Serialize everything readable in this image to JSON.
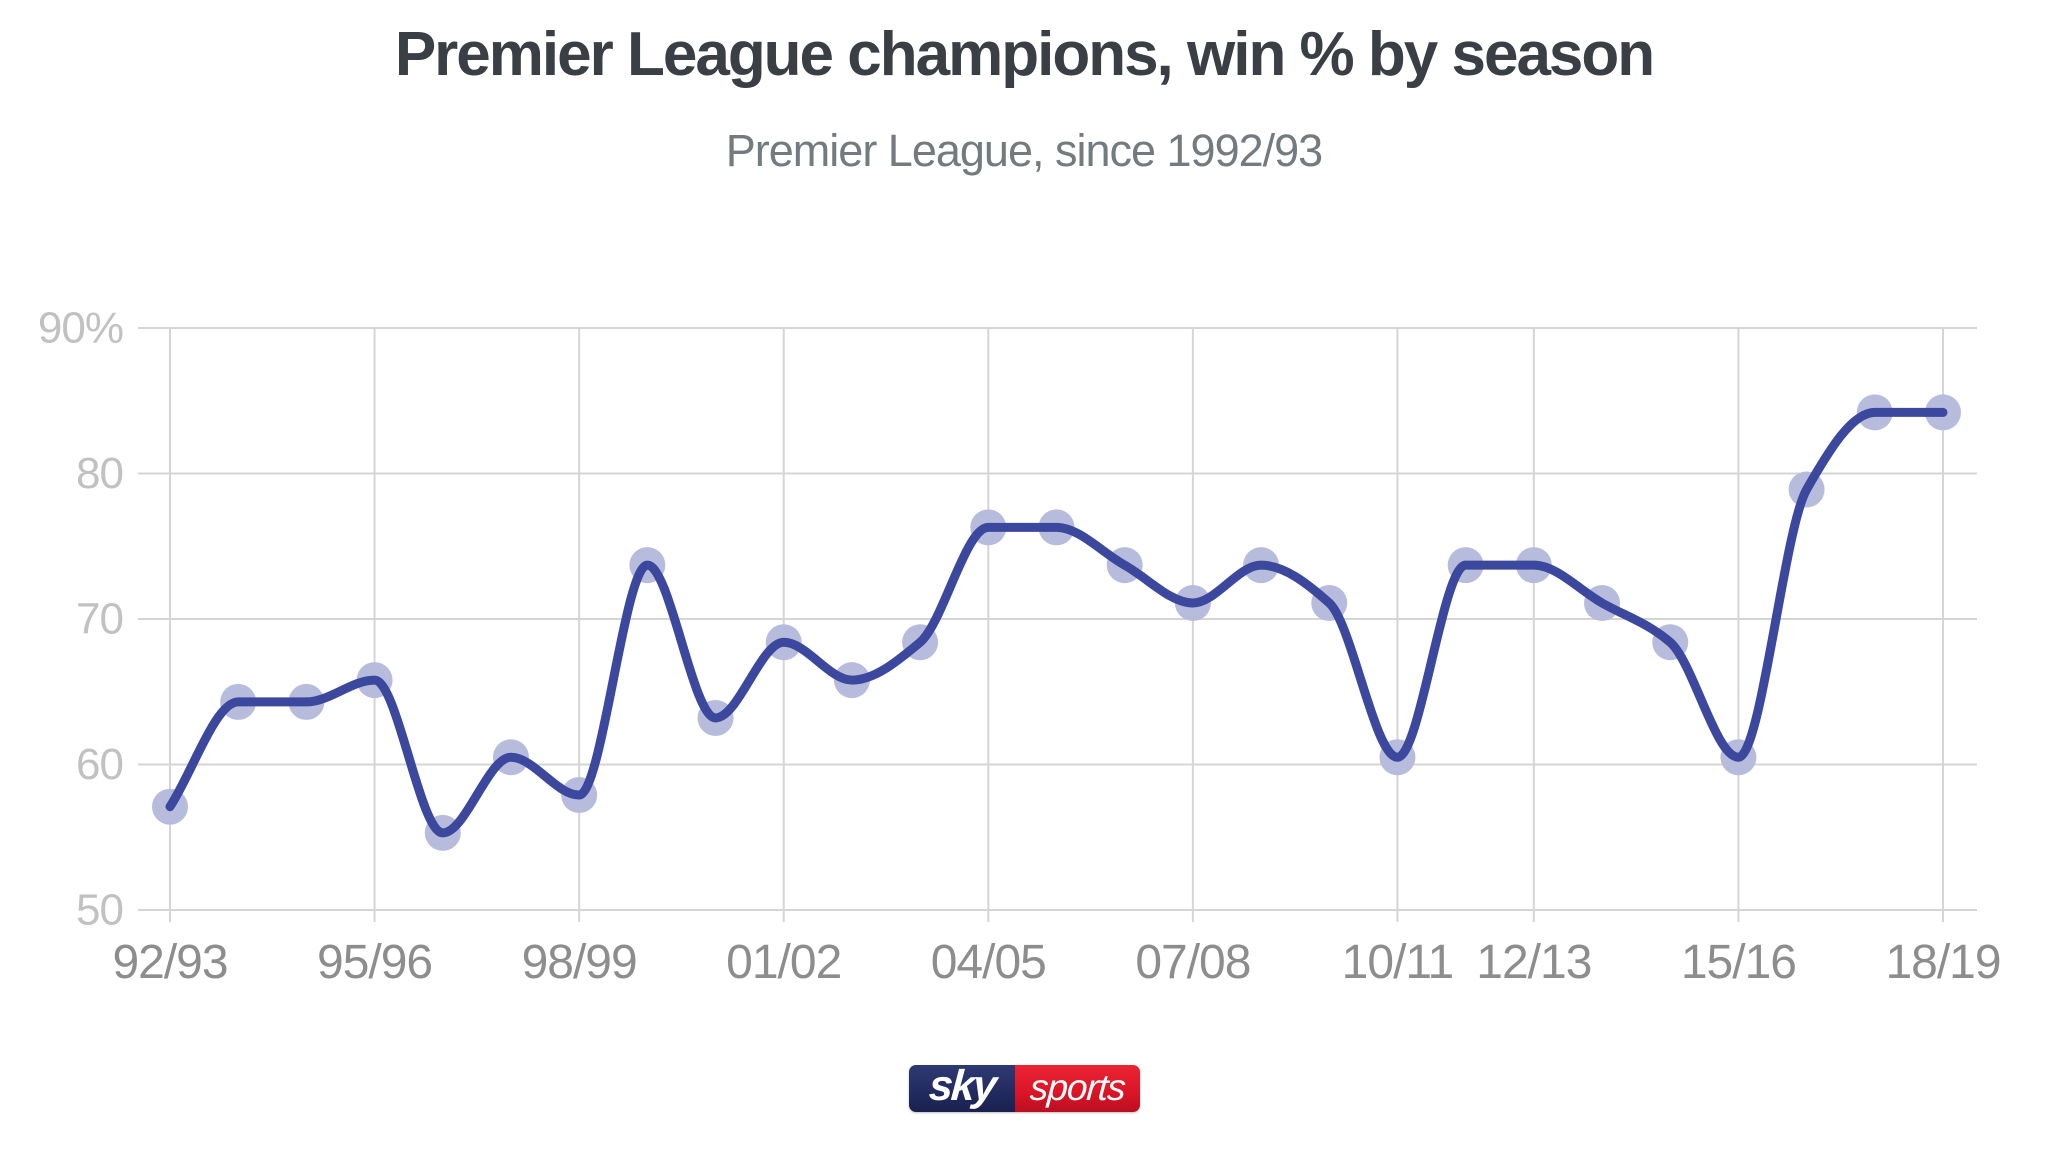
{
  "chart_data": {
    "type": "line",
    "title": "Premier League champions, win % by season",
    "subtitle": "Premier League, since 1992/93",
    "x": [
      "92/93",
      "93/94",
      "94/95",
      "95/96",
      "96/97",
      "97/98",
      "98/99",
      "99/00",
      "00/01",
      "01/02",
      "02/03",
      "03/04",
      "04/05",
      "05/06",
      "06/07",
      "07/08",
      "08/09",
      "09/10",
      "10/11",
      "11/12",
      "12/13",
      "13/14",
      "14/15",
      "15/16",
      "16/17",
      "17/18",
      "18/19"
    ],
    "values": [
      57.1,
      64.3,
      64.3,
      65.8,
      55.3,
      60.5,
      57.9,
      73.7,
      63.2,
      68.4,
      65.8,
      68.4,
      76.3,
      76.3,
      73.7,
      71.1,
      73.7,
      71.1,
      60.5,
      73.7,
      73.7,
      71.1,
      68.4,
      60.5,
      78.9,
      84.2,
      84.2
    ],
    "x_tick_labels": [
      "92/93",
      "95/96",
      "98/99",
      "01/02",
      "04/05",
      "07/08",
      "10/11",
      "12/13",
      "15/16",
      "18/19"
    ],
    "x_tick_indices": [
      0,
      3,
      6,
      9,
      12,
      15,
      18,
      20,
      23,
      26
    ],
    "y_ticks": [
      90,
      80,
      70,
      60,
      50
    ],
    "y_tick_labels": [
      "90%",
      "80",
      "70",
      "60",
      "50"
    ],
    "ylim": [
      50,
      90
    ],
    "grid": true,
    "legend_position": "none",
    "colors": {
      "line": "#3c489d",
      "marker": "#b7bcdc",
      "grid": "#d5d5d5",
      "x_tick_label": "#8d8d8d",
      "y_tick_label": "#c1c1c1",
      "title": "#393f45",
      "subtitle": "#737a80"
    }
  },
  "logo": {
    "brand_primary": "sky",
    "brand_secondary": "sports",
    "navy": "#232c61",
    "navy_light": "#2e3a73",
    "navy_dark": "#1a2150",
    "red": "#dc1627",
    "red_light": "#ea2433",
    "red_dark": "#ba0f20"
  }
}
